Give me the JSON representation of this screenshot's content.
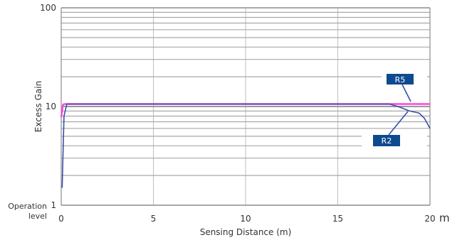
{
  "chart_data": {
    "type": "line",
    "xlabel": "Sensing Distance (m)",
    "ylabel": "Excess Gain",
    "x_unit": "m",
    "xlim": [
      0,
      20
    ],
    "ylim": [
      1,
      100
    ],
    "y_scale": "log",
    "x_ticks": [
      0,
      5,
      10,
      15,
      20
    ],
    "y_ticks": [
      1,
      10,
      100
    ],
    "y_tick_labels": [
      "1",
      "10",
      "100"
    ],
    "operation_level_label": [
      "Operation",
      "level"
    ],
    "grid": true,
    "series": [
      {
        "name": "R5",
        "color": "#ff44dd",
        "x": [
          0.0,
          0.1,
          0.2,
          17.9,
          20.0
        ],
        "y": [
          7.8,
          10.5,
          10.6,
          10.6,
          10.6
        ]
      },
      {
        "name": "R2",
        "color": "#3a4fa8",
        "x": [
          0.05,
          0.15,
          0.3,
          17.8,
          18.4,
          18.9,
          19.4,
          19.7,
          20.0
        ],
        "y": [
          1.5,
          8.0,
          10.6,
          10.6,
          9.8,
          9.0,
          8.6,
          7.6,
          6.0
        ]
      }
    ],
    "series_color": "#3a4fa8",
    "callout_color": "#0d4a8e"
  }
}
